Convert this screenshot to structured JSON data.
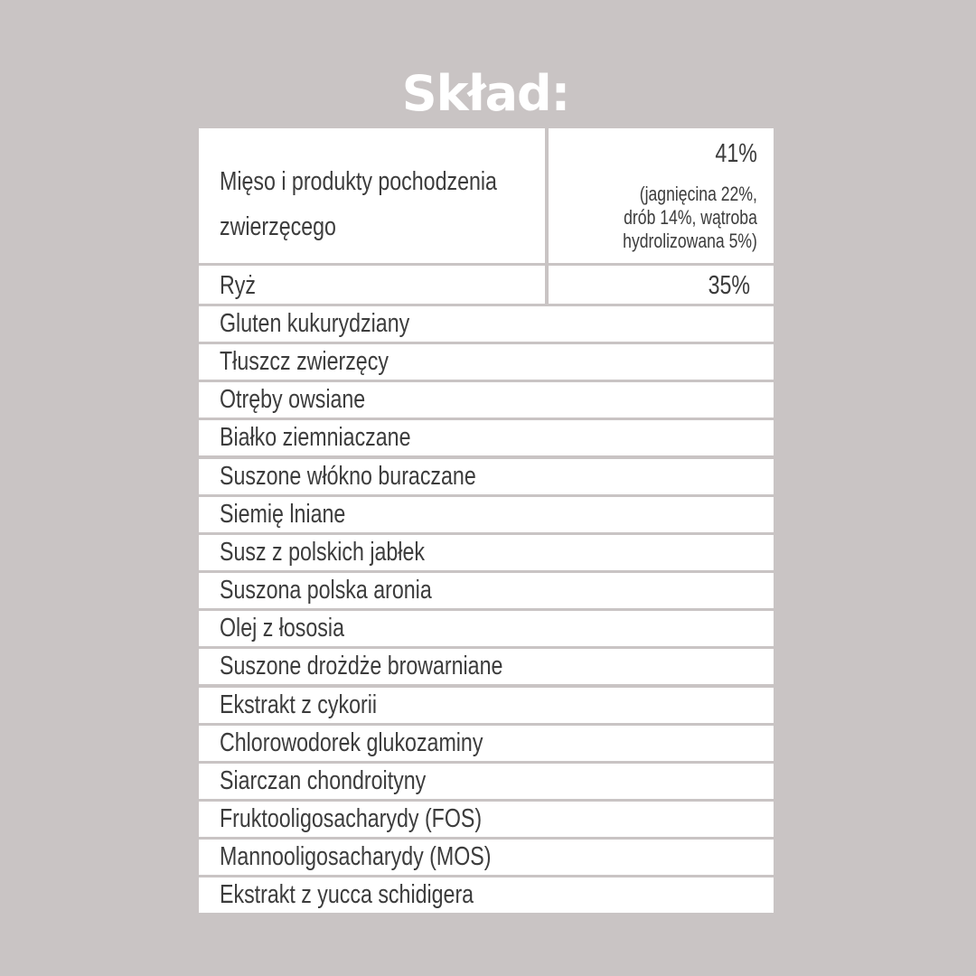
{
  "title": "Skład:",
  "main_ingredient": {
    "name": "Mięso i produkty pochodzenia zwierzęcego",
    "name_line1": "Mięso i produkty pochodzenia",
    "name_line2": "zwierzęcego",
    "percent": "41%",
    "detail_line1": "(jagnięcina 22%,",
    "detail_line2": "drób 14%, wątroba",
    "detail_line3": "hydrolizowana 5%)"
  },
  "second_ingredient": {
    "name": "Ryż",
    "percent": "35%"
  },
  "ingredients": [
    "Gluten kukurydziany",
    "Tłuszcz zwierzęcy",
    "Otręby owsiane",
    "Białko ziemniaczane",
    "Suszone włókno buraczane",
    "Siemię lniane",
    "Susz z polskich jabłek",
    "Suszona polska aronia",
    "Olej z łososia",
    "Suszone drożdże browarniane",
    "Ekstrakt z cykorii",
    "Chlorowodorek glukozaminy",
    "Siarczan chondroityny",
    "Fruktooligosacharydy (FOS)",
    "Mannooligosacharydy (MOS)",
    "Ekstrakt z yucca schidigera"
  ],
  "colors": {
    "background": "#c9c4c4",
    "cell": "#ffffff",
    "text": "#3c3c3c",
    "title": "#ffffff"
  }
}
